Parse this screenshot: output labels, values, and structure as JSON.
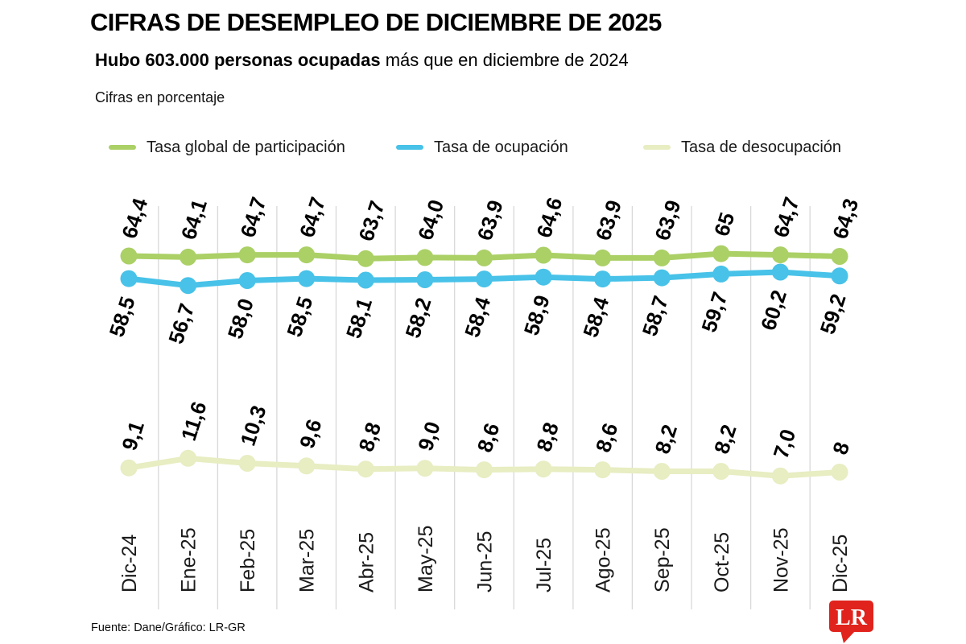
{
  "header": {
    "title": "CIFRAS DE DESEMPLEO DE DICIEMBRE DE 2025",
    "subtitle_bold": "Hubo 603.000 personas ocupadas",
    "subtitle_rest": " más que en diciembre de 2024",
    "note": "Cifras en porcentaje"
  },
  "chart_data": {
    "type": "line",
    "title": "Cifras de desempleo de diciembre de 2025",
    "unit": "percent",
    "grid": "vertical-lines-between-categories",
    "value_axis_visible": false,
    "legend_position": "top",
    "categories": [
      "Dic-24",
      "Ene-25",
      "Feb-25",
      "Mar-25",
      "Abr-25",
      "May-25",
      "Jun-25",
      "Jul-25",
      "Ago-25",
      "Sep-25",
      "Oct-25",
      "Nov-25",
      "Dic-25"
    ],
    "series": [
      {
        "name": "Tasa global de participación",
        "color": "#abd066",
        "label_position": "above",
        "values": [
          64.4,
          64.1,
          64.7,
          64.7,
          63.7,
          64.0,
          63.9,
          64.6,
          63.9,
          63.9,
          65,
          64.7,
          64.3
        ],
        "labels": [
          "64,4",
          "64,1",
          "64,7",
          "64,7",
          "63,7",
          "64,0",
          "63,9",
          "64,6",
          "63,9",
          "63,9",
          "65",
          "64,7",
          "64,3"
        ]
      },
      {
        "name": "Tasa de ocupación",
        "color": "#48c2e8",
        "label_position": "below",
        "values": [
          58.5,
          56.7,
          58.0,
          58.5,
          58.1,
          58.2,
          58.4,
          58.9,
          58.4,
          58.7,
          59.7,
          60.2,
          59.2
        ],
        "labels": [
          "58,5",
          "56,7",
          "58,0",
          "58,5",
          "58,1",
          "58,2",
          "58,4",
          "58,9",
          "58,4",
          "58,7",
          "59,7",
          "60,2",
          "59,2"
        ]
      },
      {
        "name": "Tasa de desocupación",
        "color": "#e8edc2",
        "label_position": "above",
        "values": [
          9.1,
          11.6,
          10.3,
          9.6,
          8.8,
          9.0,
          8.6,
          8.8,
          8.6,
          8.2,
          8.2,
          7.0,
          8
        ],
        "labels": [
          "9,1",
          "11,6",
          "10,3",
          "9,6",
          "8,8",
          "9,0",
          "8,6",
          "8,8",
          "8,6",
          "8,2",
          "8,2",
          "7,0",
          "8"
        ]
      }
    ],
    "gridline_color": "#d8d8d8"
  },
  "footer": {
    "source": "Fuente: Dane/Gráfico: LR-GR",
    "logo_text": "LR",
    "logo_color": "#e0231c"
  }
}
